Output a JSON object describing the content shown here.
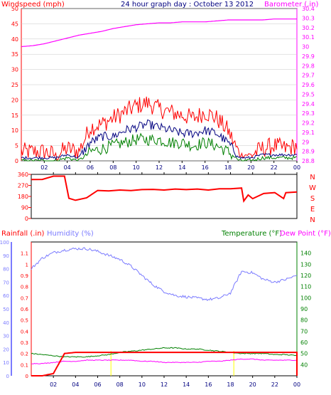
{
  "colors": {
    "wind_axis": "#ff0000",
    "wind_max": "#ff0000",
    "wind_avg": "#000080",
    "wind_min": "#008000",
    "barometer": "#ff00ff",
    "direction": "#ff0000",
    "rain": "#ff0000",
    "humidity": "#7b7bff",
    "temperature": "#008000",
    "dewpoint": "#ff00ff",
    "title": "#000080",
    "axis_black": "#000000",
    "grid": "#c8c8c8",
    "sun_marker": "#ffff00"
  },
  "chart_data": [
    {
      "type": "line",
      "title": "24 hour graph day : October 13 2012",
      "left_label": "Windspeed (mph)",
      "right_label": "Barometer (.in)",
      "x_ticks": [
        "02",
        "04",
        "06",
        "08",
        "10",
        "12",
        "14",
        "16",
        "18",
        "20",
        "22",
        "00"
      ],
      "y_left": {
        "min": 0,
        "max": 50,
        "ticks": [
          "0",
          "5",
          "10",
          "15",
          "20",
          "25",
          "30",
          "35",
          "40",
          "45",
          "50"
        ]
      },
      "y_right": {
        "min": 28.8,
        "max": 30.4,
        "ticks": [
          "28.8",
          "28.9",
          "29",
          "29.1",
          "29.2",
          "29.3",
          "29.4",
          "29.5",
          "29.6",
          "29.7",
          "29.8",
          "29.9",
          "30",
          "30.1",
          "30.2",
          "30.3",
          "30.4"
        ]
      },
      "x": [
        0,
        1,
        2,
        3,
        4,
        5,
        6,
        7,
        8,
        9,
        10,
        11,
        12,
        13,
        14,
        15,
        16,
        17,
        18,
        19,
        20,
        21,
        22,
        23,
        24
      ],
      "series": [
        {
          "name": "Windspeed max",
          "axis": "left",
          "values": [
            3,
            3,
            3,
            2,
            4,
            3,
            11,
            12,
            14,
            16,
            18,
            19,
            17,
            16,
            15,
            14,
            16,
            14,
            10,
            2,
            2,
            4,
            5,
            4,
            5
          ]
        },
        {
          "name": "Windspeed avg",
          "axis": "left",
          "values": [
            1,
            1,
            1,
            1,
            2,
            1,
            6,
            8,
            8,
            10,
            11,
            12,
            11,
            10,
            9,
            9,
            10,
            9,
            6,
            1,
            1,
            2,
            2,
            2,
            2
          ]
        },
        {
          "name": "Windspeed min",
          "axis": "left",
          "values": [
            0,
            0,
            0,
            0,
            1,
            0,
            3,
            4,
            5,
            6,
            7,
            7,
            7,
            6,
            6,
            5,
            6,
            5,
            3,
            0,
            0,
            1,
            1,
            1,
            1
          ]
        },
        {
          "name": "Barometer",
          "axis": "right",
          "values": [
            30.0,
            30.01,
            30.03,
            30.06,
            30.09,
            30.12,
            30.14,
            30.16,
            30.19,
            30.21,
            30.23,
            30.24,
            30.25,
            30.25,
            30.26,
            30.26,
            30.26,
            30.27,
            30.28,
            30.28,
            30.28,
            30.28,
            30.29,
            30.29,
            30.29
          ]
        }
      ]
    },
    {
      "type": "line",
      "title": "",
      "compass_labels": [
        "N",
        "W",
        "S",
        "E",
        "N"
      ],
      "y_left": {
        "min": 0,
        "max": 360,
        "ticks": [
          "0",
          "90",
          "180",
          "270",
          "360"
        ]
      },
      "x_ticks": [
        "02",
        "04",
        "06",
        "08",
        "10",
        "12",
        "14",
        "16",
        "18",
        "20",
        "22",
        "00"
      ],
      "x": [
        0,
        1,
        2,
        3,
        3.4,
        4,
        5,
        6,
        7,
        8,
        9,
        10,
        11,
        12,
        13,
        14,
        15,
        16,
        17,
        18,
        19,
        19.2,
        19.6,
        20,
        21,
        22,
        22.8,
        23,
        24
      ],
      "series": [
        {
          "name": "Wind direction",
          "values": [
            320,
            320,
            345,
            345,
            165,
            150,
            170,
            230,
            225,
            230,
            230,
            235,
            235,
            232,
            240,
            238,
            240,
            235,
            240,
            245,
            250,
            145,
            190,
            165,
            205,
            210,
            165,
            210,
            215
          ]
        }
      ]
    },
    {
      "type": "line",
      "title": "",
      "labels": {
        "rainfall": "Rainfall (.in)",
        "humidity": "Humidity (%)",
        "temperature": "Temperature (°F)",
        "dewpoint": "Dew Point (°F)"
      },
      "y_rain": {
        "min": 0,
        "max": 1.2,
        "ticks": [
          "0",
          "0.1",
          "0.2",
          "0.3",
          "0.4",
          "0.5",
          "0.6",
          "0.7",
          "0.8",
          "0.9",
          "1",
          "1.1"
        ]
      },
      "y_humidity": {
        "min": 0,
        "max": 100,
        "ticks": [
          "0",
          "10",
          "20",
          "30",
          "40",
          "50",
          "60",
          "70",
          "80",
          "90",
          "100"
        ]
      },
      "y_temp": {
        "min": 30,
        "max": 150,
        "ticks": [
          "40",
          "50",
          "60",
          "70",
          "80",
          "90",
          "100",
          "110",
          "120",
          "130",
          "140"
        ]
      },
      "x_ticks": [
        "02",
        "04",
        "06",
        "08",
        "10",
        "12",
        "14",
        "16",
        "18",
        "20",
        "22",
        "00"
      ],
      "x": [
        0,
        1,
        2,
        3,
        4,
        5,
        6,
        7,
        8,
        9,
        10,
        11,
        12,
        13,
        14,
        15,
        16,
        17,
        18,
        19,
        20,
        21,
        22,
        23,
        24
      ],
      "series": [
        {
          "name": "Rainfall",
          "axis": "rain",
          "values": [
            0,
            0,
            0.02,
            0.2,
            0.21,
            0.21,
            0.21,
            0.21,
            0.21,
            0.21,
            0.21,
            0.21,
            0.21,
            0.21,
            0.21,
            0.21,
            0.21,
            0.21,
            0.21,
            0.21,
            0.21,
            0.21,
            0.21,
            0.21,
            0.21
          ]
        },
        {
          "name": "Humidity",
          "axis": "humidity",
          "values": [
            80,
            88,
            92,
            94,
            95,
            95,
            93,
            90,
            87,
            82,
            75,
            68,
            63,
            60,
            59,
            58,
            57,
            58,
            62,
            78,
            77,
            72,
            70,
            72,
            75
          ]
        },
        {
          "name": "Temperature",
          "axis": "temp",
          "values": [
            50,
            49,
            48,
            47,
            47,
            47,
            48,
            49,
            51,
            52,
            53,
            54,
            55,
            55,
            54,
            54,
            53,
            52,
            51,
            50,
            50,
            50,
            49,
            49,
            48
          ]
        },
        {
          "name": "Dew Point",
          "axis": "temp",
          "values": [
            41,
            41,
            42,
            43,
            43,
            44,
            44,
            44,
            44,
            44,
            43,
            43,
            42,
            42,
            42,
            42,
            43,
            43,
            44,
            45,
            45,
            44,
            44,
            44,
            44
          ]
        }
      ]
    }
  ]
}
